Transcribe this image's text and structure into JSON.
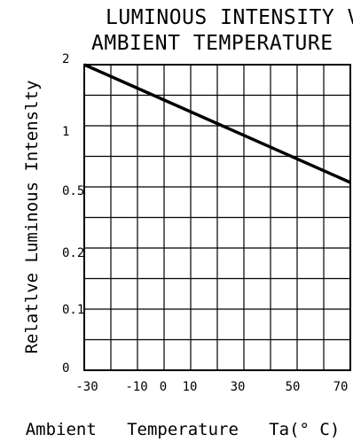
{
  "chart_data": {
    "type": "line",
    "title_lines": [
      "LUMINOUS INTENSITY VS",
      "AMBIENT TEMPERATURE"
    ],
    "xlabel": "Ambient   Temperature   Ta(° C)",
    "ylabel": "Relatlve  Luminous  Intenslty",
    "x_ticks": [
      "-30",
      "-10",
      "0",
      "10",
      "30",
      "50",
      "70"
    ],
    "y_ticks": [
      "0",
      "0.1",
      "0.2",
      "0.5",
      "1",
      "2"
    ],
    "xlim": [
      -30,
      70
    ],
    "grid": true,
    "series": [
      {
        "x": [
          -30,
          70
        ],
        "y": [
          2.0,
          0.54
        ]
      }
    ]
  }
}
